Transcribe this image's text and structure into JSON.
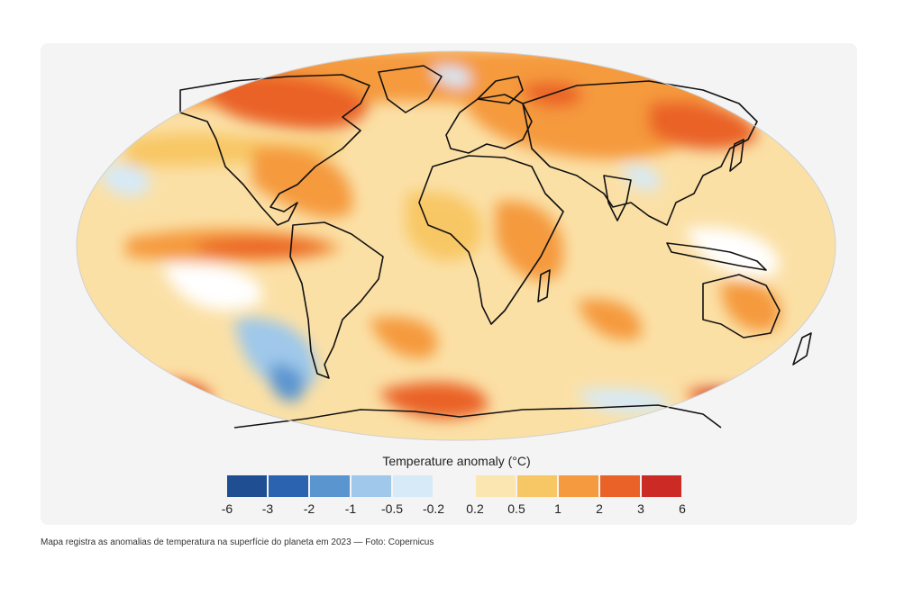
{
  "legend": {
    "title": "Temperature anomaly (°C)",
    "ticks": [
      "-6",
      "-3",
      "-2",
      "-1",
      "-0.5",
      "-0.2",
      "0.2",
      "0.5",
      "1",
      "2",
      "3",
      "6"
    ],
    "colors": [
      "#1f4e93",
      "#2c63b0",
      "#5a95d0",
      "#9fc8ea",
      "#d6eaf8",
      "#f4f4f4",
      "#fbe5b0",
      "#f8c765",
      "#f59a3e",
      "#ea6228",
      "#cc2a25"
    ]
  },
  "map": {
    "projection": "Robinson-like ellipse",
    "ocean_base_color": "#fbe0a6",
    "land_outline_color": "#111111"
  },
  "caption": "Mapa registra as anomalias de temperatura na superfície do planeta em 2023 — Foto: Copernicus"
}
